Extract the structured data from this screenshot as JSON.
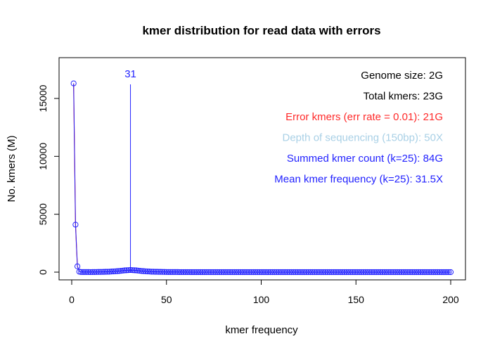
{
  "colors": {
    "error_line": "#ff2a2a",
    "points": "#2222ff",
    "peak_line": "#2222ff",
    "annot_black": "#000000",
    "annot_red": "#ff2a2a",
    "annot_lightblue": "#a9d0e6",
    "annot_blue": "#2222ff"
  },
  "chart_data": {
    "type": "line",
    "title": "kmer distribution for read data with errors",
    "xlabel": "kmer frequency",
    "ylabel": "No. kmers (M)",
    "xlim": [
      0,
      200
    ],
    "ylim": [
      0,
      17000
    ],
    "x_ticks": [
      0,
      50,
      100,
      150,
      200
    ],
    "y_ticks": [
      0,
      5000,
      10000,
      15000
    ],
    "grid": false,
    "series": [
      {
        "points": [
          [
            1,
            16300
          ],
          [
            2,
            4100
          ],
          [
            3,
            500
          ],
          [
            4,
            40
          ]
        ]
      },
      {
        "x_range": [
          1,
          200
        ],
        "peak_x": 31,
        "peak_y": 180,
        "points": [
          [
            1,
            16300
          ],
          [
            2,
            4100
          ],
          [
            3,
            500
          ],
          [
            4,
            40
          ],
          [
            5,
            10
          ],
          [
            10,
            5
          ],
          [
            15,
            15
          ],
          [
            20,
            40
          ],
          [
            25,
            95
          ],
          [
            28,
            150
          ],
          [
            31,
            180
          ],
          [
            34,
            150
          ],
          [
            37,
            95
          ],
          [
            42,
            40
          ],
          [
            50,
            10
          ],
          [
            60,
            3
          ],
          [
            70,
            0
          ],
          [
            200,
            0
          ]
        ]
      }
    ],
    "peak_marker": {
      "x": 31,
      "label": "31"
    },
    "annotations": [
      {
        "text": "Genome size: 2G",
        "color": "#000000"
      },
      {
        "text": "Total kmers: 23G",
        "color": "#000000"
      },
      {
        "text": "Error kmers (err rate = 0.01): 21G",
        "color": "#ff2a2a"
      },
      {
        "text": "Depth of sequencing (150bp): 50X",
        "color": "#a9d0e6"
      },
      {
        "text": "Summed kmer count (k=25): 84G",
        "color": "#2222ff"
      },
      {
        "text": "Mean kmer frequency (k=25): 31.5X",
        "color": "#2222ff"
      }
    ]
  }
}
